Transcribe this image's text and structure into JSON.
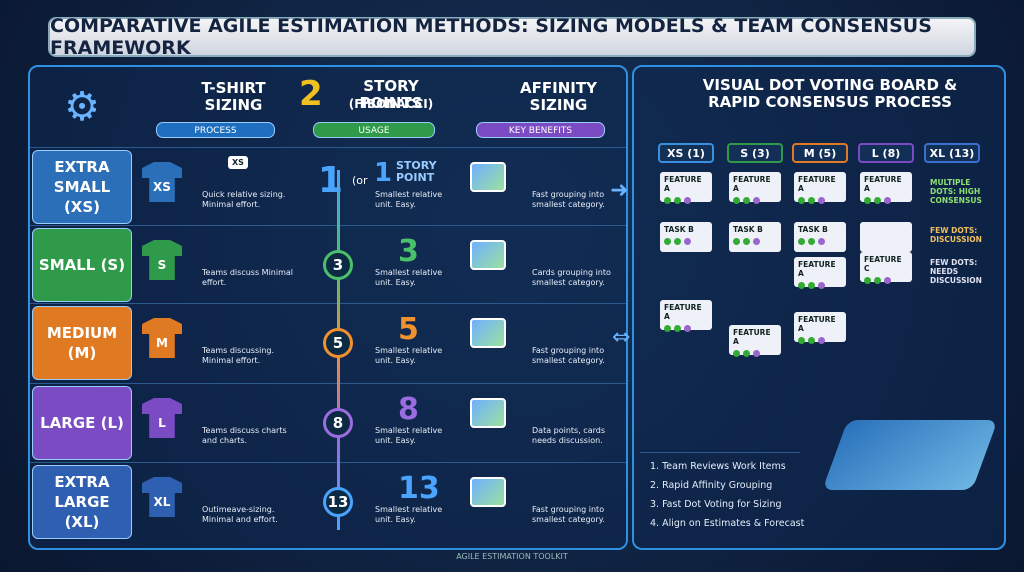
{
  "title": "COMPARATIVE AGILE ESTIMATION METHODS: SIZING MODELS & TEAM CONSENSUS FRAMEWORK",
  "methods": [
    {
      "title": "T-SHIRT SIZING",
      "tag": "PROCESS"
    },
    {
      "icon": "2",
      "title": "STORY POINTS",
      "subtitle": "(FIBONACCI)",
      "tag": "USAGE"
    },
    {
      "title": "AFFINITY SIZING",
      "tag": "KEY BENEFITS"
    }
  ],
  "rows": [
    {
      "label": "EXTRA SMALL (XS)",
      "shirt": "XS",
      "process": "Quick relative sizing. Minimal effort.",
      "points": "1",
      "points_prefix": "(or",
      "points_alt": "1",
      "points_unit": "STORY POINT",
      "usage": "Smallest relative unit. Easy.",
      "benefit": "Fast grouping into smallest category."
    },
    {
      "label": "SMALL (S)",
      "shirt": "S",
      "process": "Teams discuss Minimal effort.",
      "points": "3",
      "usage": "Smallest relative unit. Easy.",
      "benefit": "Cards grouping into smallest category."
    },
    {
      "label": "MEDIUM (M)",
      "shirt": "M",
      "process": "Teams discussing. Minimal effort.",
      "points": "5",
      "usage": "Smallest relative unit. Easy.",
      "benefit": "Fast grouping into smallest category."
    },
    {
      "label": "LARGE (L)",
      "shirt": "L",
      "process": "Teams discuss charts and charts.",
      "points": "8",
      "usage": "Smallest relative unit. Easy.",
      "benefit": "Data points, cards needs discussion."
    },
    {
      "label": "EXTRA LARGE (XL)",
      "shirt": "XL",
      "process": "Outimeave-sizing. Minimal and effort.",
      "points": "13",
      "usage": "Smallest relative unit. Easy.",
      "benefit": "Fast grouping into smallest category."
    }
  ],
  "board": {
    "title": "VISUAL DOT VOTING BOARD & RAPID CONSENSUS PROCESS",
    "columns": [
      {
        "label": "XS (1)",
        "cards": [
          "FEATURE A",
          "TASK B",
          "FEATURE A"
        ]
      },
      {
        "label": "S (3)",
        "cards": [
          "FEATURE A",
          "TASK B",
          "FEATURE A"
        ]
      },
      {
        "label": "M (5)",
        "cards": [
          "FEATURE A",
          "TASK B",
          "FEATURE A",
          "FEATURE A"
        ]
      },
      {
        "label": "L (8)",
        "cards": [
          "FEATURE A",
          "FEATURE C"
        ]
      },
      {
        "label": "XL (13)"
      }
    ],
    "notes": [
      "MULTIPLE DOTS: HIGH CONSENSUS",
      "FEW DOTS: DISCUSSION",
      "FEW DOTS: NEEDS DISCUSSION"
    ],
    "steps": [
      "1. Team Reviews Work Items",
      "2. Rapid Affinity Grouping",
      "3. Fast Dot Voting for Sizing",
      "4. Align on Estimates & Forecast"
    ]
  },
  "footer": "AGILE ESTIMATION TOOLKIT"
}
